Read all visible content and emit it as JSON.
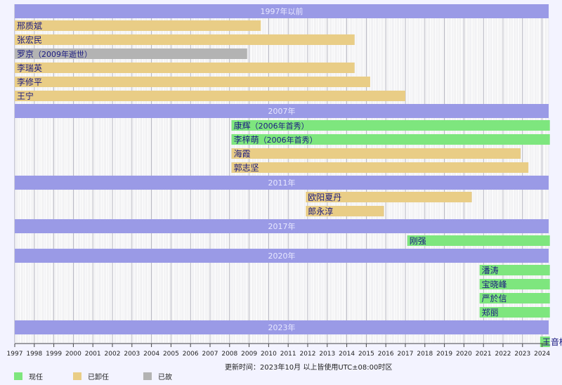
{
  "chart_data": {
    "type": "timeline",
    "x_range": [
      1997,
      2024.4
    ],
    "ticks": [
      "1997",
      "1998",
      "1999",
      "2000",
      "2001",
      "2002",
      "2003",
      "2004",
      "2005",
      "2006",
      "2007",
      "2008",
      "2009",
      "2010",
      "2011",
      "2012",
      "2013",
      "2014",
      "2015",
      "2016",
      "2017",
      "2018",
      "2019",
      "2020",
      "2021",
      "2022",
      "2023",
      "2024"
    ],
    "colors": {
      "current": "#7ee67e",
      "former": "#e9cd86",
      "deceased": "#b3b3b3",
      "group_header": "#9a9ae6",
      "plot_bg": "#ffffff",
      "grid": "#9a9aa8",
      "label_text": "#1a1a80"
    },
    "groups": [
      {
        "label": "1997年以前",
        "items": [
          {
            "name": "邢质斌",
            "note": "",
            "start": 1997,
            "end": 2009.6,
            "status": "former"
          },
          {
            "name": "张宏民",
            "note": "",
            "start": 1997,
            "end": 2014.4,
            "status": "former"
          },
          {
            "name": "罗京",
            "note": "（2009年逝世）",
            "start": 1997,
            "end": 2008.9,
            "status": "deceased"
          },
          {
            "name": "李瑞英",
            "note": "",
            "start": 1997,
            "end": 2014.4,
            "status": "former"
          },
          {
            "name": "李修平",
            "note": "",
            "start": 1997,
            "end": 2015.2,
            "status": "former"
          },
          {
            "name": "王宁",
            "note": "",
            "start": 1997,
            "end": 2017.0,
            "status": "former"
          }
        ]
      },
      {
        "label": "2007年",
        "items": [
          {
            "name": "康辉",
            "note": "（2006年首秀）",
            "start": 2008.1,
            "end": 2024.4,
            "status": "current"
          },
          {
            "name": "李梓萌",
            "note": "（2006年首秀）",
            "start": 2008.1,
            "end": 2024.4,
            "status": "current"
          },
          {
            "name": "海霞",
            "note": "",
            "start": 2008.1,
            "end": 2022.9,
            "status": "former"
          },
          {
            "name": "郭志坚",
            "note": "",
            "start": 2008.1,
            "end": 2023.3,
            "status": "former"
          }
        ]
      },
      {
        "label": "2011年",
        "items": [
          {
            "name": "欧阳夏丹",
            "note": "",
            "start": 2011.9,
            "end": 2020.4,
            "status": "former"
          },
          {
            "name": "郎永淳",
            "note": "",
            "start": 2011.9,
            "end": 2015.9,
            "status": "former"
          }
        ]
      },
      {
        "label": "2017年",
        "items": [
          {
            "name": "刚强",
            "note": "",
            "start": 2017.1,
            "end": 2024.4,
            "status": "current"
          }
        ]
      },
      {
        "label": "2020年",
        "items": [
          {
            "name": "潘涛",
            "note": "",
            "start": 2020.8,
            "end": 2024.4,
            "status": "current"
          },
          {
            "name": "宝晓峰",
            "note": "",
            "start": 2020.8,
            "end": 2024.4,
            "status": "current"
          },
          {
            "name": "严於信",
            "note": "",
            "start": 2020.8,
            "end": 2024.4,
            "status": "current"
          },
          {
            "name": "郑丽",
            "note": "",
            "start": 2020.8,
            "end": 2024.4,
            "status": "current"
          }
        ]
      },
      {
        "label": "2023年",
        "items": [
          {
            "name": "王音棋",
            "note": "",
            "start": 2023.9,
            "end": 2024.4,
            "status": "current"
          }
        ]
      }
    ],
    "legend": [
      {
        "status": "current",
        "label": "现任"
      },
      {
        "status": "former",
        "label": "已卸任"
      },
      {
        "status": "deceased",
        "label": "已故"
      }
    ]
  },
  "footer": {
    "updated": "更新时间：2023年10月   以上皆使用UTC±08:00时区"
  }
}
